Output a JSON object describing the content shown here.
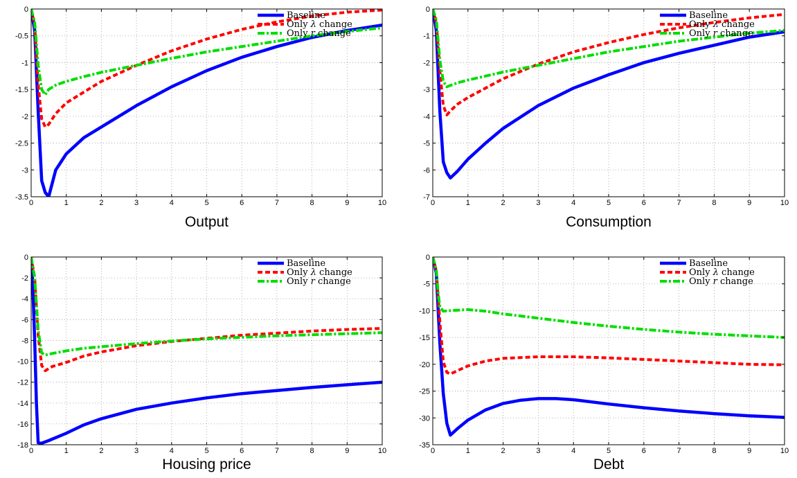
{
  "colors": {
    "baseline": "#0000ff",
    "lambda": "#ff0000",
    "r": "#00dd00"
  },
  "chart_data": [
    {
      "type": "line",
      "title": "Output",
      "xlim": [
        0,
        10
      ],
      "ylim": [
        -3.5,
        0
      ],
      "xticks": [
        0,
        1,
        2,
        3,
        4,
        5,
        6,
        7,
        8,
        9,
        10
      ],
      "xtick_labels": [
        "0",
        "1",
        "2",
        "3",
        "4",
        "5",
        "6",
        "7",
        "8",
        "9",
        "10"
      ],
      "yticks": [
        0,
        -0.5,
        -1,
        -1.5,
        -2,
        -2.5,
        -3,
        -3.5
      ],
      "ytick_labels": [
        "0",
        "-0.5",
        "-1",
        "-1.5",
        "-2",
        "-2.5",
        "-3",
        "-3.5"
      ],
      "grid": true,
      "legend_position": "top-right",
      "series": [
        {
          "name": "Baseline",
          "style": "solid",
          "x": [
            0,
            0.1,
            0.2,
            0.3,
            0.4,
            0.5,
            0.7,
            1,
            1.5,
            2,
            3,
            4,
            5,
            6,
            7,
            8,
            9,
            10
          ],
          "y": [
            0,
            -0.4,
            -1.9,
            -3.2,
            -3.42,
            -3.5,
            -3.0,
            -2.7,
            -2.4,
            -2.2,
            -1.8,
            -1.45,
            -1.15,
            -0.9,
            -0.7,
            -0.53,
            -0.4,
            -0.3
          ]
        },
        {
          "name": "Only λ change",
          "style": "dashed",
          "x": [
            0,
            0.1,
            0.2,
            0.3,
            0.4,
            0.5,
            0.7,
            1,
            1.5,
            2,
            3,
            4,
            5,
            6,
            7,
            8,
            9,
            10
          ],
          "y": [
            0,
            -0.3,
            -1.4,
            -2.05,
            -2.2,
            -2.15,
            -1.95,
            -1.75,
            -1.55,
            -1.35,
            -1.05,
            -0.78,
            -0.56,
            -0.38,
            -0.24,
            -0.13,
            -0.06,
            -0.02
          ]
        },
        {
          "name": "Only r change",
          "style": "dashdot",
          "x": [
            0,
            0.1,
            0.2,
            0.3,
            0.4,
            0.5,
            0.7,
            1,
            1.5,
            2,
            3,
            4,
            5,
            6,
            7,
            8,
            9,
            10
          ],
          "y": [
            0,
            -0.25,
            -1.05,
            -1.5,
            -1.6,
            -1.5,
            -1.42,
            -1.35,
            -1.26,
            -1.18,
            -1.05,
            -0.92,
            -0.8,
            -0.7,
            -0.6,
            -0.5,
            -0.42,
            -0.35
          ]
        }
      ]
    },
    {
      "type": "line",
      "title": "Consumption",
      "xlim": [
        0,
        10
      ],
      "ylim": [
        -7,
        0
      ],
      "xticks": [
        0,
        1,
        2,
        3,
        4,
        5,
        6,
        7,
        8,
        9,
        10
      ],
      "xtick_labels": [
        "0",
        "1",
        "2",
        "3",
        "4",
        "5",
        "6",
        "7",
        "8",
        "9",
        "10"
      ],
      "yticks": [
        0,
        -1,
        -2,
        -3,
        -4,
        -5,
        -6,
        -7
      ],
      "ytick_labels": [
        "0",
        "-1",
        "-2",
        "-3",
        "-4",
        "-5",
        "-6",
        "-7"
      ],
      "grid": true,
      "legend_position": "top-right",
      "series": [
        {
          "name": "Baseline",
          "style": "solid",
          "x": [
            0,
            0.1,
            0.2,
            0.3,
            0.4,
            0.5,
            0.7,
            1,
            1.5,
            2,
            3,
            4,
            5,
            6,
            7,
            8,
            9,
            10
          ],
          "y": [
            0,
            -0.8,
            -3.8,
            -5.7,
            -6.1,
            -6.3,
            -6.05,
            -5.6,
            -5.0,
            -4.45,
            -3.6,
            -2.95,
            -2.45,
            -2.0,
            -1.65,
            -1.35,
            -1.05,
            -0.85
          ]
        },
        {
          "name": "Only λ change",
          "style": "dashed",
          "x": [
            0,
            0.1,
            0.2,
            0.3,
            0.4,
            0.5,
            0.7,
            1,
            1.5,
            2,
            3,
            4,
            5,
            6,
            7,
            8,
            9,
            10
          ],
          "y": [
            0,
            -0.5,
            -2.3,
            -3.6,
            -3.95,
            -3.8,
            -3.55,
            -3.3,
            -2.95,
            -2.6,
            -2.05,
            -1.6,
            -1.25,
            -0.95,
            -0.7,
            -0.5,
            -0.33,
            -0.2
          ]
        },
        {
          "name": "Only r change",
          "style": "dashdot",
          "x": [
            0,
            0.1,
            0.2,
            0.3,
            0.4,
            0.5,
            0.7,
            1,
            1.5,
            2,
            3,
            4,
            5,
            6,
            7,
            8,
            9,
            10
          ],
          "y": [
            0,
            -0.4,
            -1.9,
            -2.7,
            -2.9,
            -2.85,
            -2.75,
            -2.65,
            -2.5,
            -2.35,
            -2.1,
            -1.85,
            -1.6,
            -1.4,
            -1.2,
            -1.05,
            -0.9,
            -0.8
          ]
        }
      ]
    },
    {
      "type": "line",
      "title": "Housing price",
      "xlim": [
        0,
        10
      ],
      "ylim": [
        -18,
        0
      ],
      "xticks": [
        0,
        1,
        2,
        3,
        4,
        5,
        6,
        7,
        8,
        9,
        10
      ],
      "xtick_labels": [
        "0",
        "1",
        "2",
        "3",
        "4",
        "5",
        "6",
        "7",
        "8",
        "9",
        "10"
      ],
      "yticks": [
        0,
        -2,
        -4,
        -6,
        -8,
        -10,
        -12,
        -14,
        -16,
        -18
      ],
      "ytick_labels": [
        "0",
        "-2",
        "-4",
        "-6",
        "-8",
        "-10",
        "-12",
        "-14",
        "-16",
        "-18"
      ],
      "grid": true,
      "legend_position": "top-right",
      "series": [
        {
          "name": "Baseline",
          "style": "solid",
          "x": [
            0,
            0.05,
            0.1,
            0.15,
            0.2,
            0.3,
            0.5,
            1,
            1.5,
            2,
            3,
            4,
            5,
            6,
            7,
            8,
            9,
            10
          ],
          "y": [
            0,
            -3,
            -8,
            -14,
            -17.8,
            -17.85,
            -17.6,
            -16.9,
            -16.1,
            -15.5,
            -14.6,
            -14.0,
            -13.5,
            -13.1,
            -12.8,
            -12.5,
            -12.25,
            -12.0
          ]
        },
        {
          "name": "Only λ change",
          "style": "dashed",
          "x": [
            0,
            0.1,
            0.2,
            0.3,
            0.4,
            0.6,
            1,
            1.5,
            2,
            3,
            4,
            5,
            6,
            7,
            8,
            9,
            10
          ],
          "y": [
            0,
            -2,
            -7.5,
            -10.4,
            -10.9,
            -10.5,
            -10.1,
            -9.5,
            -9.1,
            -8.5,
            -8.1,
            -7.8,
            -7.5,
            -7.3,
            -7.1,
            -6.95,
            -6.85
          ]
        },
        {
          "name": "Only r change",
          "style": "dashdot",
          "x": [
            0,
            0.1,
            0.2,
            0.3,
            0.4,
            0.6,
            1,
            1.5,
            2,
            3,
            4,
            5,
            6,
            7,
            8,
            9,
            10
          ],
          "y": [
            0,
            -2,
            -7,
            -9.2,
            -9.4,
            -9.25,
            -9.0,
            -8.75,
            -8.6,
            -8.3,
            -8.05,
            -7.85,
            -7.7,
            -7.55,
            -7.45,
            -7.35,
            -7.25
          ]
        }
      ]
    },
    {
      "type": "line",
      "title": "Debt",
      "xlim": [
        0,
        10
      ],
      "ylim": [
        -35,
        0
      ],
      "xticks": [
        0,
        1,
        2,
        3,
        4,
        5,
        6,
        7,
        8,
        9,
        10
      ],
      "xtick_labels": [
        "0",
        "1",
        "2",
        "3",
        "4",
        "5",
        "6",
        "7",
        "8",
        "9",
        "10"
      ],
      "yticks": [
        0,
        -5,
        -10,
        -15,
        -20,
        -25,
        -30,
        -35
      ],
      "ytick_labels": [
        "0",
        "-5",
        "-10",
        "-15",
        "-20",
        "-25",
        "-30",
        "-35"
      ],
      "grid": true,
      "legend_position": "top-right",
      "series": [
        {
          "name": "Baseline",
          "style": "solid",
          "x": [
            0,
            0.1,
            0.2,
            0.3,
            0.4,
            0.5,
            0.7,
            1,
            1.5,
            2,
            2.5,
            3,
            3.5,
            4,
            5,
            6,
            7,
            8,
            9,
            10
          ],
          "y": [
            0,
            -3,
            -16,
            -25.5,
            -31,
            -33.2,
            -32.0,
            -30.4,
            -28.5,
            -27.3,
            -26.7,
            -26.4,
            -26.4,
            -26.6,
            -27.4,
            -28.1,
            -28.7,
            -29.2,
            -29.6,
            -29.9
          ]
        },
        {
          "name": "Only λ change",
          "style": "dashed",
          "x": [
            0,
            0.1,
            0.2,
            0.3,
            0.4,
            0.5,
            0.7,
            1,
            1.5,
            2,
            3,
            4,
            5,
            6,
            7,
            8,
            9,
            10
          ],
          "y": [
            0,
            -2.5,
            -12,
            -19.5,
            -21.5,
            -21.8,
            -21.2,
            -20.3,
            -19.4,
            -18.9,
            -18.6,
            -18.6,
            -18.8,
            -19.1,
            -19.4,
            -19.7,
            -20.0,
            -20.1
          ]
        },
        {
          "name": "Only r change",
          "style": "dashdot",
          "x": [
            0,
            0.1,
            0.15,
            0.2,
            0.3,
            0.5,
            1,
            1.5,
            2,
            3,
            4,
            5,
            6,
            7,
            8,
            9,
            10
          ],
          "y": [
            0,
            -2.5,
            -6.5,
            -9.3,
            -10.1,
            -10.0,
            -9.8,
            -10.1,
            -10.6,
            -11.4,
            -12.2,
            -12.9,
            -13.5,
            -14.0,
            -14.4,
            -14.7,
            -15.0
          ]
        }
      ]
    }
  ]
}
